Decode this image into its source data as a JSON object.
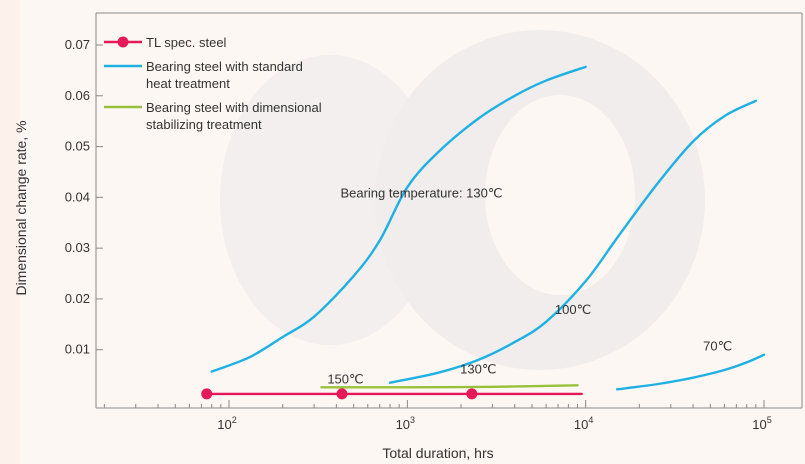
{
  "chart_data": {
    "type": "line",
    "xlabel": "Total duration, hrs",
    "ylabel": "Dimensional change rate, %",
    "xscale": "log",
    "xlim": [
      10,
      100000.0
    ],
    "ylim": [
      0,
      0.075
    ],
    "x_ticks": [
      {
        "value": 100,
        "base": "10",
        "exp": "2"
      },
      {
        "value": 1000,
        "base": "10",
        "exp": "3"
      },
      {
        "value": 10000,
        "base": "10",
        "exp": "4"
      },
      {
        "value": 100000,
        "base": "10",
        "exp": "5"
      }
    ],
    "y_ticks": [
      "0.01",
      "0.02",
      "0.03",
      "0.04",
      "0.05",
      "0.06",
      "0.07"
    ],
    "y_tick_values": [
      0.01,
      0.02,
      0.03,
      0.04,
      0.05,
      0.06,
      0.07
    ],
    "legend": {
      "position": "top-left",
      "entries": [
        {
          "label_lines": [
            "TL spec. steel"
          ],
          "color": "#e5185a",
          "marker": true
        },
        {
          "label_lines": [
            "Bearing steel with standard",
            "heat treatment"
          ],
          "color": "#1fb1e3",
          "marker": false
        },
        {
          "label_lines": [
            "Bearing steel with dimensional",
            "stabilizing treatment"
          ],
          "color": "#97c13b",
          "marker": false
        }
      ]
    },
    "series": [
      {
        "name": "Bearing temperature: 130℃",
        "color": "#1fb1e3",
        "points": [
          [
            80,
            0.0057
          ],
          [
            130,
            0.0085
          ],
          [
            200,
            0.0125
          ],
          [
            300,
            0.0165
          ],
          [
            500,
            0.0245
          ],
          [
            700,
            0.0315
          ],
          [
            1000,
            0.042
          ],
          [
            1500,
            0.049
          ],
          [
            2500,
            0.0555
          ],
          [
            4000,
            0.06
          ],
          [
            6000,
            0.063
          ],
          [
            10000,
            0.0657
          ]
        ]
      },
      {
        "name": "100℃",
        "color": "#1fb1e3",
        "points": [
          [
            800,
            0.0035
          ],
          [
            1500,
            0.0055
          ],
          [
            2500,
            0.008
          ],
          [
            4000,
            0.0115
          ],
          [
            6000,
            0.0155
          ],
          [
            10000,
            0.0235
          ],
          [
            15000,
            0.032
          ],
          [
            25000,
            0.0425
          ],
          [
            40000,
            0.051
          ],
          [
            60000,
            0.056
          ],
          [
            90000,
            0.059
          ]
        ]
      },
      {
        "name": "70℃",
        "color": "#1fb1e3",
        "points": [
          [
            15000,
            0.0022
          ],
          [
            25000,
            0.0032
          ],
          [
            40000,
            0.0045
          ],
          [
            60000,
            0.006
          ],
          [
            80000,
            0.0075
          ],
          [
            100000,
            0.009
          ]
        ]
      },
      {
        "name": "130℃",
        "color": "#97c13b",
        "points": [
          [
            330,
            0.0026
          ],
          [
            1000,
            0.0026
          ],
          [
            3000,
            0.0027
          ],
          [
            9000,
            0.003
          ]
        ]
      },
      {
        "name": "150℃",
        "color": "#e5185a",
        "marker": true,
        "points": [
          [
            75,
            0.0013
          ],
          [
            200,
            0.0013
          ],
          [
            430,
            0.0013
          ],
          [
            2300,
            0.0013
          ],
          [
            9500,
            0.0013
          ]
        ],
        "marker_points": [
          [
            75,
            0.0013
          ],
          [
            430,
            0.0013
          ],
          [
            2300,
            0.0013
          ]
        ]
      }
    ],
    "annotations": [
      {
        "text": "Bearing temperature: 130℃",
        "x": 1200,
        "y": 0.04
      },
      {
        "text": "100℃",
        "x": 8500,
        "y": 0.017
      },
      {
        "text": "70℃",
        "x": 55000,
        "y": 0.0098
      },
      {
        "text": "130℃",
        "x": 2500,
        "y": 0.0053
      },
      {
        "text": "150℃",
        "x": 450,
        "y": 0.0033
      }
    ]
  }
}
